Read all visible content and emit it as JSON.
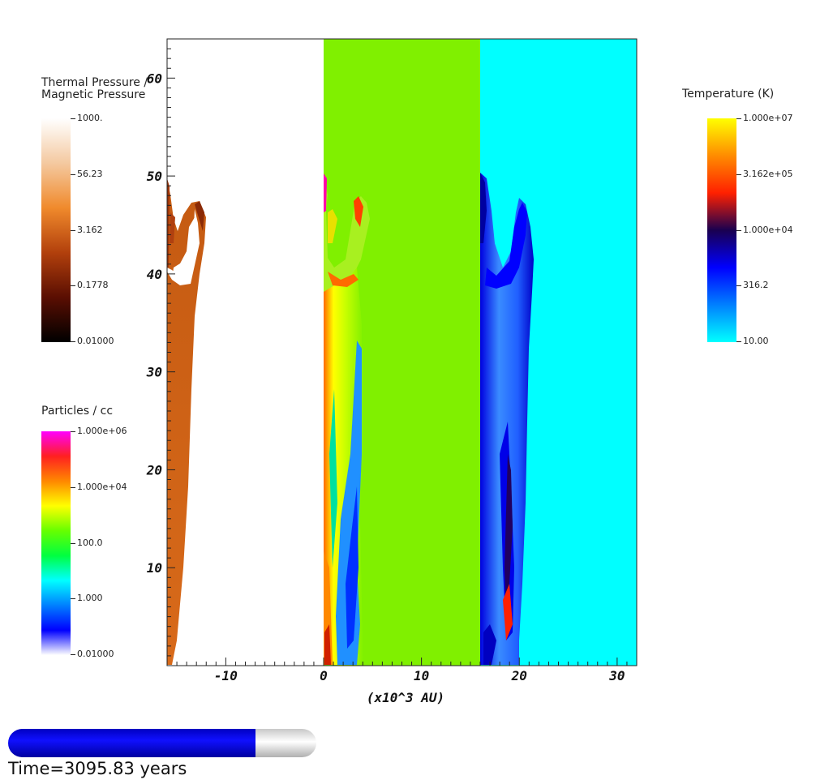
{
  "chart_data": {
    "type": "heatmap",
    "title": "",
    "xlabel": "(x10^3 AU)",
    "ylabel": "",
    "xlim": [
      -16,
      32
    ],
    "ylim": [
      0,
      64
    ],
    "x_ticks": [
      -10,
      0,
      10,
      20,
      30
    ],
    "y_ticks": [
      10,
      20,
      30,
      40,
      50,
      60
    ],
    "panels": [
      {
        "field": "Thermal Pressure / Magnetic Pressure",
        "x_range": [
          -16,
          0
        ]
      },
      {
        "field": "Particles / cc",
        "x_range": [
          0,
          16
        ]
      },
      {
        "field": "Temperature (K)",
        "x_range": [
          16,
          32
        ]
      }
    ],
    "colorbars": [
      {
        "title": "Thermal Pressure /\nMagnetic Pressure",
        "labels": [
          "1000.",
          "56.23",
          "3.162",
          "0.1778",
          "0.01000"
        ],
        "colors": [
          "#ffffff",
          "#f4c9a0",
          "#f08a2c",
          "#b2400c",
          "#5a0e02",
          "#000000"
        ]
      },
      {
        "title": "Particles / cc",
        "labels": [
          "1.000e+06",
          "1.000e+04",
          "100.0",
          "1.000",
          "0.01000"
        ],
        "colors": [
          "#ff00ff",
          "#ff2020",
          "#ff8800",
          "#ffff00",
          "#66ff00",
          "#00ff40",
          "#00ffff",
          "#0080ff",
          "#0000ff",
          "#ffffff"
        ]
      },
      {
        "title": "Temperature (K)",
        "labels": [
          "1.000e+07",
          "3.162e+05",
          "1.000e+04",
          "316.2",
          "10.00"
        ],
        "colors": [
          "#ffff00",
          "#ff8c00",
          "#ff2000",
          "#1a0050",
          "#0000ff",
          "#0080ff",
          "#00ffff"
        ]
      }
    ]
  },
  "time": {
    "label": "Time=3095.83 years",
    "progress": 0.803
  },
  "colors": {
    "panel_density_bg": "#80f000",
    "panel_temp_bg": "#00ffff",
    "panel_pressure_bg": "#ffffff",
    "time_bar_fill": "#0000ee"
  }
}
